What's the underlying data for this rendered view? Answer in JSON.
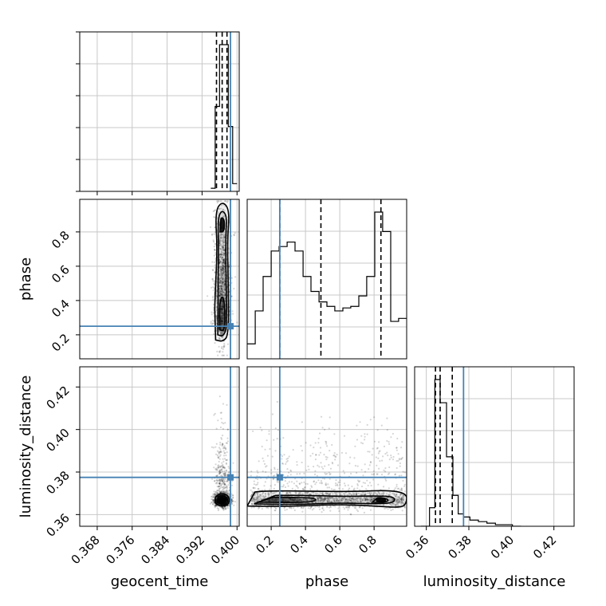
{
  "chart_data": {
    "type": "corner",
    "parameters": [
      "geocent_time",
      "phase",
      "luminosity_distance"
    ],
    "axis_labels": {
      "geocent_time": "geocent_time",
      "phase": "phase",
      "luminosity_distance": "luminosity_distance"
    },
    "ranges": {
      "geocent_time": [
        0.364,
        0.4005
      ],
      "phase": [
        0.06,
        0.99
      ],
      "luminosity_distance": [
        0.3545,
        0.4295
      ]
    },
    "ticks": {
      "geocent_time": [
        "0.368",
        "0.376",
        "0.384",
        "0.392",
        "0.400"
      ],
      "phase": [
        "0.2",
        "0.4",
        "0.6",
        "0.8"
      ],
      "luminosity_distance": [
        "0.36",
        "0.38",
        "0.40",
        "0.42"
      ]
    },
    "truths": {
      "geocent_time": 0.3985,
      "phase": 0.25,
      "luminosity_distance": 0.3775
    },
    "quantiles": {
      "geocent_time": [
        0.3953,
        0.3966,
        0.3977
      ],
      "phase": [
        0.25,
        0.49,
        0.84
      ],
      "luminosity_distance": [
        0.3643,
        0.3665,
        0.3722
      ]
    },
    "histograms": {
      "geocent_time": {
        "bin_edges": [
          0.394,
          0.395,
          0.396,
          0.397,
          0.398,
          0.399,
          0.4
        ],
        "counts": [
          2,
          55,
          95,
          95,
          42,
          5
        ]
      },
      "phase": {
        "bin_edges": [
          0.06,
          0.107,
          0.153,
          0.2,
          0.246,
          0.293,
          0.339,
          0.386,
          0.432,
          0.479,
          0.525,
          0.571,
          0.618,
          0.664,
          0.711,
          0.757,
          0.804,
          0.85,
          0.897,
          0.943,
          0.99
        ],
        "counts": [
          10,
          32,
          55,
          72,
          75,
          78,
          72,
          55,
          45,
          38,
          35,
          32,
          34,
          35,
          42,
          55,
          98,
          85,
          25,
          27
        ]
      },
      "luminosity_distance": {
        "bin_edges": [
          0.3575,
          0.3615,
          0.364,
          0.3665,
          0.3695,
          0.3725,
          0.375,
          0.3775,
          0.3805,
          0.3845,
          0.3885,
          0.3925,
          0.3965,
          0.4005,
          0.4045
        ],
        "counts": [
          0,
          12,
          95,
          80,
          45,
          20,
          8,
          6,
          4,
          3,
          2,
          1,
          1,
          0
        ]
      }
    },
    "grid": true,
    "colors": {
      "truth": "#4682b4",
      "hist_line": "#000000",
      "quantile_line": "#000000",
      "contour": "#000000",
      "grid": "#c8c8c8"
    }
  }
}
